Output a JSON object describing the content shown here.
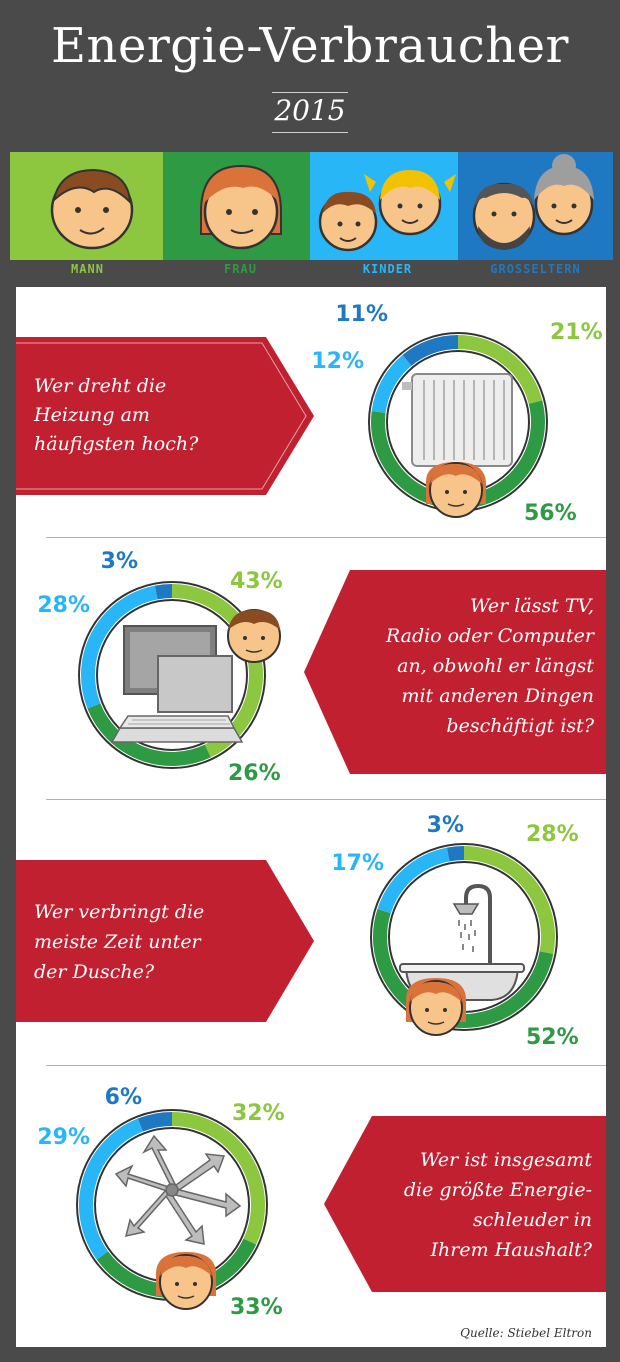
{
  "header": {
    "title": "Energie-Verbraucher",
    "year": "2015"
  },
  "groups": [
    {
      "label": "MANN",
      "color": "#8dc63f",
      "bg": "#8dc63f"
    },
    {
      "label": "FRAU",
      "color": "#2e9a44",
      "bg": "#2e9a44"
    },
    {
      "label": "KINDER",
      "color": "#29b6f6",
      "bg": "#29b6f6"
    },
    {
      "label": "GROSSELTERN",
      "color": "#1e78c2",
      "bg": "#1e78c2"
    }
  ],
  "questions": [
    {
      "lines": [
        "Wer dreht die",
        "Heizung am",
        "häufigsten hoch?"
      ],
      "icon": "radiator-icon"
    },
    {
      "lines": [
        "Wer lässt TV,",
        "Radio oder Computer",
        "an, obwohl er längst",
        "mit anderen Dingen",
        "beschäftigt ist?"
      ],
      "icon": "computer-icon"
    },
    {
      "lines": [
        "Wer verbringt die",
        "meiste Zeit unter",
        "der Dusche?"
      ],
      "icon": "shower-icon"
    },
    {
      "lines": [
        "Wer ist insgesamt",
        "die größte Energie-",
        "schleuder in",
        "Ihrem Haushalt?"
      ],
      "icon": "energy-arrows-icon"
    }
  ],
  "chart_data": [
    {
      "type": "pie",
      "categories": [
        "Mann",
        "Frau",
        "Kinder",
        "Grosseltern"
      ],
      "values": [
        21,
        56,
        12,
        11
      ],
      "labels": [
        "21%",
        "56%",
        "12%",
        "11%"
      ]
    },
    {
      "type": "pie",
      "categories": [
        "Mann",
        "Frau",
        "Kinder",
        "Grosseltern"
      ],
      "values": [
        43,
        26,
        28,
        3
      ],
      "labels": [
        "43%",
        "26%",
        "28%",
        "3%"
      ]
    },
    {
      "type": "pie",
      "categories": [
        "Mann",
        "Frau",
        "Kinder",
        "Grosseltern"
      ],
      "values": [
        28,
        52,
        17,
        3
      ],
      "labels": [
        "28%",
        "52%",
        "17%",
        "3%"
      ]
    },
    {
      "type": "pie",
      "categories": [
        "Mann",
        "Frau",
        "Kinder",
        "Grosseltern"
      ],
      "values": [
        32,
        33,
        29,
        6
      ],
      "labels": [
        "32%",
        "33%",
        "29%",
        "6%"
      ]
    }
  ],
  "colors": {
    "mann": "#8dc63f",
    "frau": "#2e9a44",
    "kinder": "#29b6f6",
    "grosseltern": "#1e78c2",
    "banner": "#c0202f",
    "skin": "#f7c58a",
    "hair": "#d9733a"
  },
  "source": "Quelle: Stiebel Eltron"
}
